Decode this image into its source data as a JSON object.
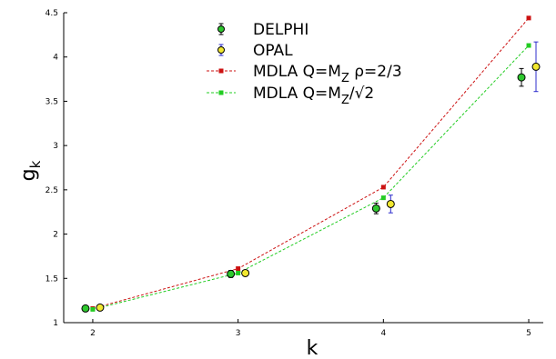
{
  "chart_data": {
    "type": "scatter",
    "xlabel": "k",
    "ylabel_base": "g",
    "ylabel_sub": "k",
    "xlim": [
      1.8,
      5.1
    ],
    "ylim": [
      1.0,
      4.5
    ],
    "xticks": [
      "2",
      "3",
      "4",
      "5"
    ],
    "yticks": [
      "1",
      "1.5",
      "2",
      "2.5",
      "3",
      "3.5",
      "4",
      "4.5"
    ],
    "grid": false,
    "legend_position": "top-center",
    "series": [
      {
        "name": "DELPHI",
        "kind": "points",
        "marker": "circle",
        "fill": "#2ec82e",
        "errcolor": "#000000",
        "x": [
          1.95,
          2.95,
          3.95,
          4.95
        ],
        "y": [
          1.16,
          1.55,
          2.29,
          3.77
        ],
        "err": [
          0.02,
          0.04,
          0.06,
          0.1
        ]
      },
      {
        "name": "OPAL",
        "kind": "points",
        "marker": "circle",
        "fill": "#f2e830",
        "errcolor": "#2a2acc",
        "x": [
          2.05,
          3.05,
          4.05,
          5.05
        ],
        "y": [
          1.17,
          1.56,
          2.34,
          3.89
        ],
        "err": [
          0.02,
          0.03,
          0.1,
          0.28
        ]
      },
      {
        "name_prefix": "MDLA Q=M",
        "name_sub": "Z",
        "name_suffix": "  ρ=2/3",
        "kind": "line",
        "marker": "square",
        "color": "#cc1111",
        "x": [
          2,
          3,
          4,
          5
        ],
        "y": [
          1.16,
          1.61,
          2.53,
          4.44
        ]
      },
      {
        "name_prefix": "MDLA Q=M",
        "name_sub": "Z",
        "name_suffix": "/√2",
        "kind": "line",
        "marker": "square",
        "color": "#22cc22",
        "x": [
          2,
          3,
          4,
          5
        ],
        "y": [
          1.15,
          1.56,
          2.41,
          4.13
        ]
      }
    ]
  }
}
